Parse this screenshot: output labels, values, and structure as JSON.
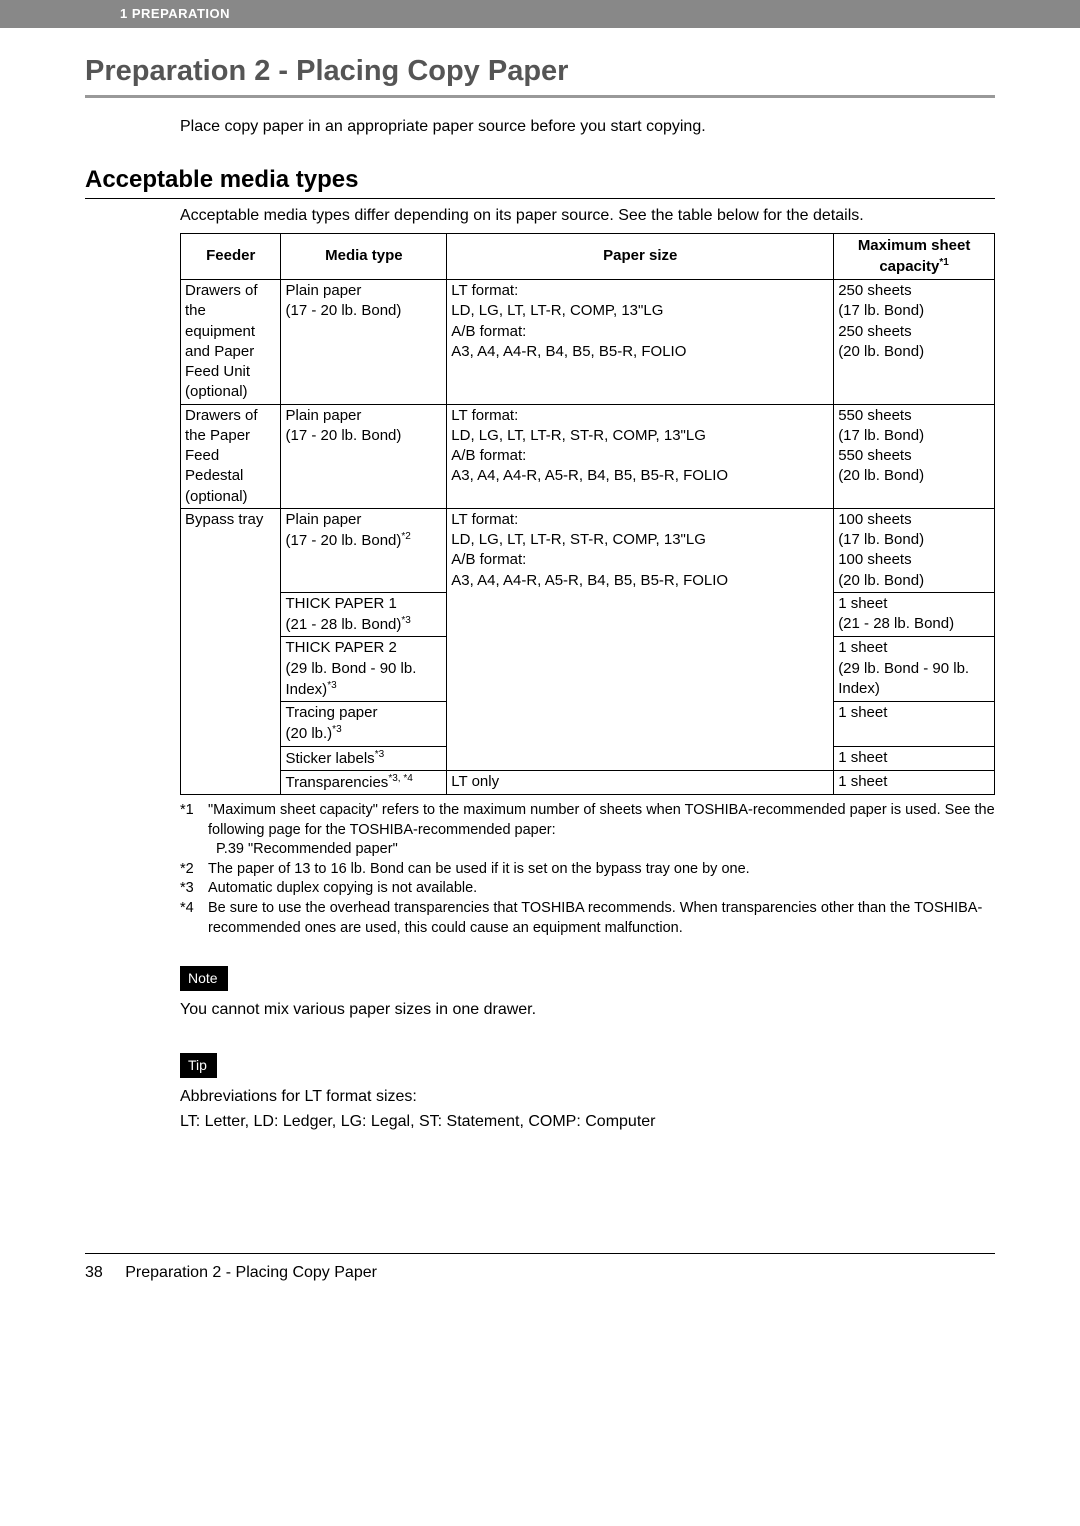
{
  "chapter_tag": "1  PREPARATION",
  "section_title": "Preparation 2 - Placing Copy Paper",
  "intro": "Place copy paper in an appropriate paper source before you start copying.",
  "sub_title": "Acceptable media types",
  "sub_intro": "Acceptable media types differ depending on its paper source. See the table below for the details.",
  "table": {
    "headers": {
      "feeder": "Feeder",
      "media": "Media type",
      "size": "Paper size",
      "cap_line1": "Maximum sheet",
      "cap_line2": "capacity",
      "cap_sup": "*1"
    },
    "r1": {
      "feeder": "Drawers of the equipment and Paper Feed Unit (optional)",
      "media": "Plain paper\n(17 - 20 lb. Bond)",
      "size": "LT format:\nLD, LG, LT, LT-R, COMP, 13\"LG\nA/B format:\nA3, A4, A4-R, B4, B5, B5-R, FOLIO",
      "cap": "250 sheets\n(17 lb. Bond)\n250 sheets\n(20 lb. Bond)"
    },
    "r2": {
      "feeder": "Drawers of the Paper Feed Pedestal (optional)",
      "media": "Plain paper\n(17 - 20 lb. Bond)",
      "size": "LT format:\nLD, LG, LT, LT-R, ST-R, COMP, 13\"LG\nA/B format:\nA3, A4, A4-R, A5-R, B4, B5, B5-R, FOLIO",
      "cap": "550 sheets\n(17 lb. Bond)\n550 sheets\n(20 lb. Bond)"
    },
    "r3": {
      "feeder": "Bypass tray",
      "m1_a": "Plain paper",
      "m1_b": "(17 - 20 lb. Bond)",
      "m1_sup": "*2",
      "size": "LT format:\nLD, LG, LT, LT-R, ST-R, COMP, 13\"LG\nA/B format:\nA3, A4, A4-R, A5-R, B4, B5, B5-R, FOLIO",
      "cap1": "100 sheets\n(17 lb. Bond)\n100 sheets\n(20 lb. Bond)",
      "m2_a": "THICK PAPER 1",
      "m2_b": "(21 - 28 lb. Bond)",
      "m2_sup": "*3",
      "cap2": "1 sheet\n(21 - 28 lb. Bond)",
      "m3_a": "THICK PAPER 2",
      "m3_b": "(29 lb. Bond - 90 lb. Index)",
      "m3_sup": "*3",
      "cap3": "1 sheet\n(29 lb. Bond - 90 lb. Index)",
      "m4_a": "Tracing paper",
      "m4_b": "(20 lb.)",
      "m4_sup": "*3",
      "cap4": "1 sheet",
      "m5": "Sticker labels",
      "m5_sup": "*3",
      "cap5": "1 sheet",
      "m6": "Transparencies",
      "m6_sup": "*3, *4",
      "size6": "LT only",
      "cap6": "1 sheet"
    }
  },
  "footnotes": {
    "f1n": "*1",
    "f1a": "\"Maximum sheet capacity\" refers to the maximum number of sheets when TOSHIBA-recommended paper is used. See the following page for the TOSHIBA-recommended paper:",
    "f1b": "P.39 \"Recommended paper\"",
    "f2n": "*2",
    "f2": "The paper of 13 to 16 lb. Bond can be used if it is set on the bypass tray one by one.",
    "f3n": "*3",
    "f3": "Automatic duplex copying is not available.",
    "f4n": "*4",
    "f4": "Be sure to use the overhead transparencies that TOSHIBA recommends. When transparencies other than the TOSHIBA-recommended ones are used, this could cause an equipment malfunction."
  },
  "note_label": "Note",
  "note_text": "You cannot mix various paper sizes in one drawer.",
  "tip_label": "Tip",
  "tip_text1": "Abbreviations for LT format sizes:",
  "tip_text2": "LT: Letter, LD: Ledger, LG: Legal, ST: Statement, COMP: Computer",
  "footer": {
    "page": "38",
    "title": "Preparation 2 - Placing Copy Paper"
  }
}
